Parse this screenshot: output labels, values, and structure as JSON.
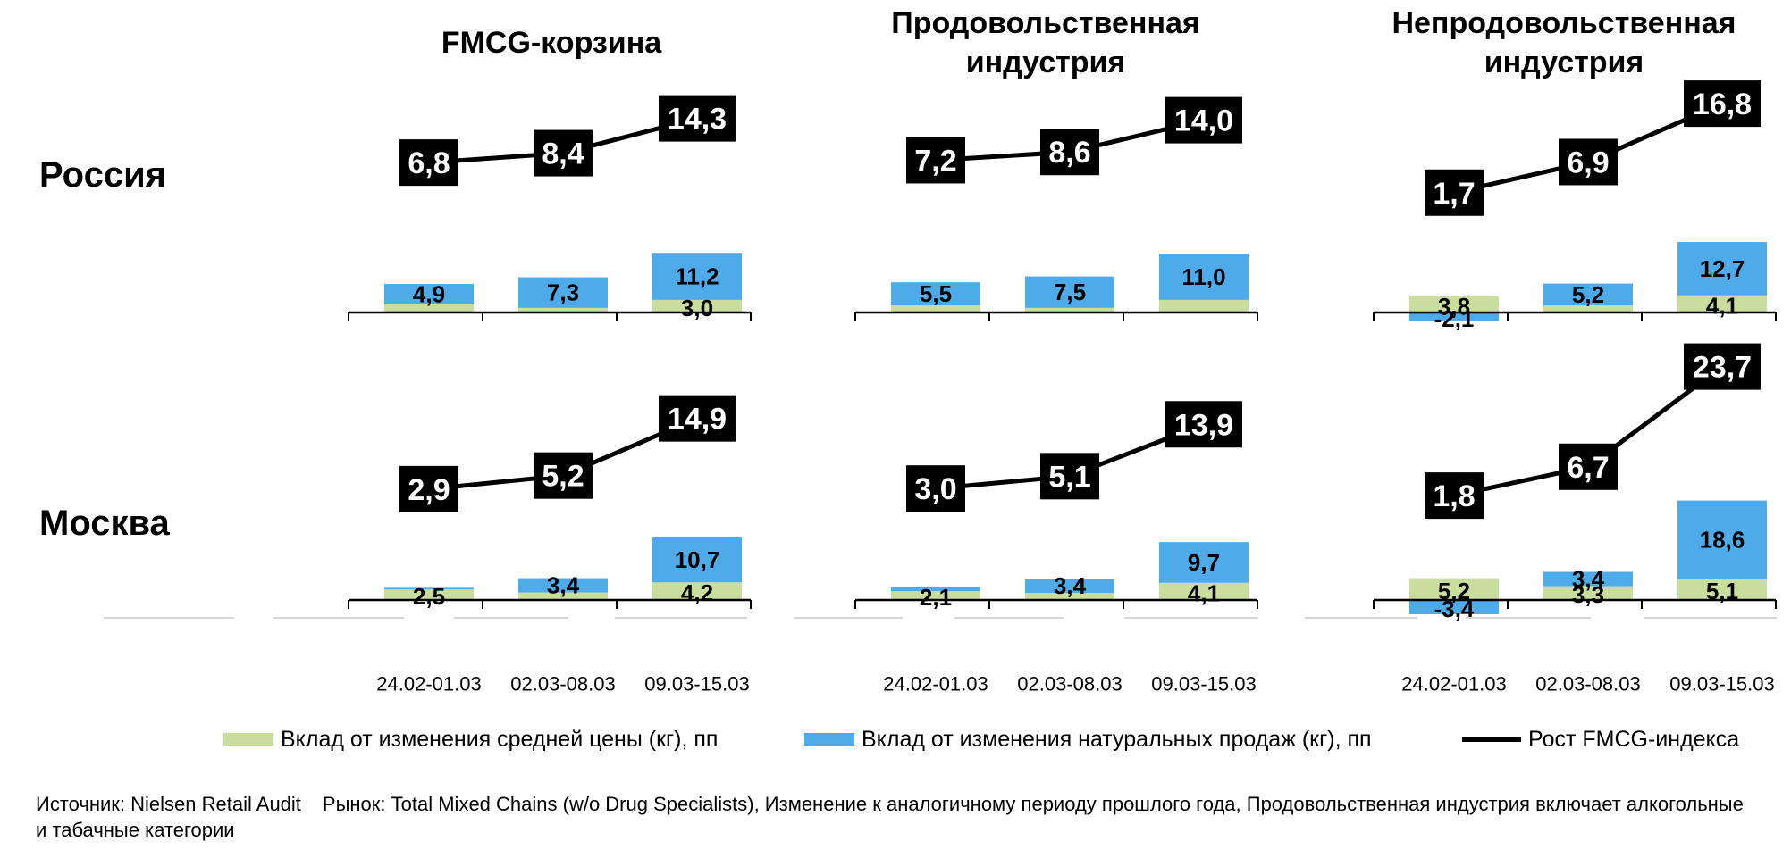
{
  "row_labels": [
    "Россия",
    "Москва"
  ],
  "panel_titles": [
    [
      "FMCG-корзина"
    ],
    [
      "Продовольственная",
      "индустрия"
    ],
    [
      "Непродовольственная",
      "индустрия"
    ]
  ],
  "legend": {
    "price": "Вклад от изменения средней цены (кг), пп",
    "volume": "Вклад от изменения натуральных продаж (кг), пп",
    "growth": "Рост FMCG-индекса"
  },
  "source": {
    "source_label": "Источник: Nielsen Retail Audit",
    "market_note": "Рынок: Total Mixed Chains (w/o Drug Specialists), Изменение к аналогичному периоду прошлого года, Продовольственная индустрия включает алкогольные и табачные категории"
  },
  "colors": {
    "price": "#c9dd9e",
    "volume": "#4eaae9",
    "line": "#000000",
    "label_box": "#000000",
    "baseline": "#000000"
  },
  "chart_data": [
    {
      "type": "bar",
      "region": "Россия",
      "title": "FMCG-корзина",
      "categories": [
        "24.02-01.03",
        "02.03-08.03",
        "09.03-15.03"
      ],
      "series": [
        {
          "name": "Вклад от изменения средней цены (кг), пп",
          "values": [
            1.9,
            1.1,
            3.0
          ],
          "labels": [
            "",
            "",
            "3,0"
          ]
        },
        {
          "name": "Вклад от изменения натуральных продаж (кг), пп",
          "values": [
            4.9,
            7.3,
            11.2
          ],
          "labels": [
            "4,9",
            "7,3",
            "11,2"
          ]
        }
      ],
      "line": {
        "name": "Рост FMCG-индекса",
        "values": [
          6.8,
          8.4,
          14.3
        ],
        "labels": [
          "6,8",
          "8,4",
          "14,3"
        ]
      }
    },
    {
      "type": "bar",
      "region": "Россия",
      "title": "Продовольственная индустрия",
      "categories": [
        "24.02-01.03",
        "02.03-08.03",
        "09.03-15.03"
      ],
      "series": [
        {
          "name": "Вклад от изменения средней цены (кг), пп",
          "values": [
            1.7,
            1.1,
            3.0
          ],
          "labels": [
            "",
            "",
            ""
          ]
        },
        {
          "name": "Вклад от изменения натуральных продаж (кг), пп",
          "values": [
            5.5,
            7.5,
            11.0
          ],
          "labels": [
            "5,5",
            "7,5",
            "11,0"
          ]
        }
      ],
      "line": {
        "name": "Рост FMCG-индекса",
        "values": [
          7.2,
          8.6,
          14.0
        ],
        "labels": [
          "7,2",
          "8,6",
          "14,0"
        ]
      }
    },
    {
      "type": "bar",
      "region": "Россия",
      "title": "Непродовольственная индустрия",
      "categories": [
        "24.02-01.03",
        "02.03-08.03",
        "09.03-15.03"
      ],
      "series": [
        {
          "name": "Вклад от изменения средней цены (кг), пп",
          "values": [
            3.8,
            1.7,
            4.1
          ],
          "labels": [
            "3,8",
            "",
            "4,1"
          ]
        },
        {
          "name": "Вклад от изменения натуральных продаж (кг), пп",
          "values": [
            -2.1,
            5.2,
            12.7
          ],
          "labels": [
            "-2,1",
            "5,2",
            "12,7"
          ]
        }
      ],
      "line": {
        "name": "Рост FMCG-индекса",
        "values": [
          1.7,
          6.9,
          16.8
        ],
        "labels": [
          "1,7",
          "6,9",
          "16,8"
        ]
      }
    },
    {
      "type": "bar",
      "region": "Москва",
      "title": "FMCG-корзина",
      "categories": [
        "24.02-01.03",
        "02.03-08.03",
        "09.03-15.03"
      ],
      "series": [
        {
          "name": "Вклад от изменения средней цены (кг), пп",
          "values": [
            2.5,
            1.8,
            4.2
          ],
          "labels": [
            "2,5",
            "",
            "4,2"
          ]
        },
        {
          "name": "Вклад от изменения натуральных продаж (кг), пп",
          "values": [
            0.4,
            3.4,
            10.7
          ],
          "labels": [
            "",
            "3,4",
            "10,7"
          ]
        }
      ],
      "line": {
        "name": "Рост FMCG-индекса",
        "values": [
          2.9,
          5.2,
          14.9
        ],
        "labels": [
          "2,9",
          "5,2",
          "14,9"
        ]
      }
    },
    {
      "type": "bar",
      "region": "Москва",
      "title": "Продовольственная индустрия",
      "categories": [
        "24.02-01.03",
        "02.03-08.03",
        "09.03-15.03"
      ],
      "series": [
        {
          "name": "Вклад от изменения средней цены (кг), пп",
          "values": [
            2.1,
            1.7,
            4.1
          ],
          "labels": [
            "2,1",
            "",
            "4,1"
          ]
        },
        {
          "name": "Вклад от изменения натуральных продаж (кг), пп",
          "values": [
            0.9,
            3.4,
            9.7
          ],
          "labels": [
            "",
            "3,4",
            "9,7"
          ]
        }
      ],
      "line": {
        "name": "Рост FMCG-индекса",
        "values": [
          3.0,
          5.1,
          13.9
        ],
        "labels": [
          "3,0",
          "5,1",
          "13,9"
        ]
      }
    },
    {
      "type": "bar",
      "region": "Москва",
      "title": "Непродовольственная индустрия",
      "categories": [
        "24.02-01.03",
        "02.03-08.03",
        "09.03-15.03"
      ],
      "series": [
        {
          "name": "Вклад от изменения средней цены (кг), пп",
          "values": [
            5.2,
            3.3,
            5.1
          ],
          "labels": [
            "5,2",
            "3,3",
            "5,1"
          ]
        },
        {
          "name": "Вклад от изменения натуральных продаж (кг), пп",
          "values": [
            -3.4,
            3.4,
            18.6
          ],
          "labels": [
            "-3,4",
            "3,4",
            "18,6"
          ]
        }
      ],
      "line": {
        "name": "Рост FMCG-индекса",
        "values": [
          1.8,
          6.7,
          23.7
        ],
        "labels": [
          "1,8",
          "6,7",
          "23,7"
        ]
      }
    }
  ]
}
